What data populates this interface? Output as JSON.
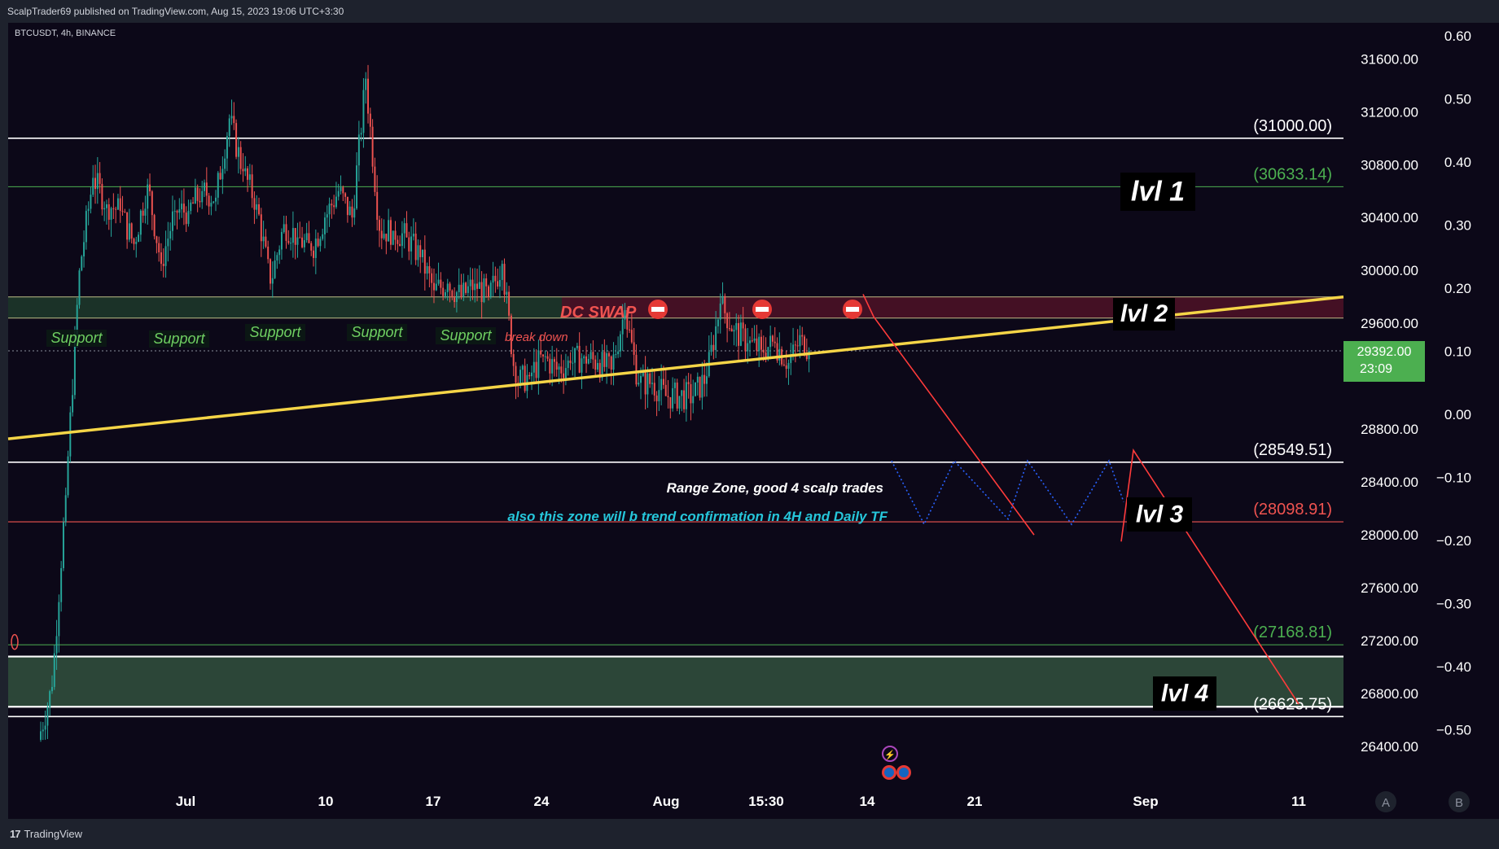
{
  "header": {
    "published_by": "ScalpTrader69 published on TradingView.com, Aug 15, 2023 19:06 UTC+3:30"
  },
  "footer": {
    "brand": "TradingView"
  },
  "chart_data": {
    "type": "candlestick",
    "symbol_label": "BTCUSDT, 4h, BINANCE",
    "colors": {
      "background": "#0c0818",
      "up": "#26a69a",
      "down": "#ef5350",
      "trendline": "#f5d547",
      "level_white": "#ffffff",
      "level_green": "#4caf50",
      "level_red": "#ef5350",
      "projection": "#ff3b3b",
      "range_path": "#2962ff"
    },
    "price_axis": {
      "ticks": [
        "31600.00",
        "31200.00",
        "30800.00",
        "30400.00",
        "30000.00",
        "29600.00",
        "28800.00",
        "28400.00",
        "28000.00",
        "27600.00",
        "27200.00",
        "26800.00",
        "26400.00"
      ],
      "range": [
        26300,
        31850
      ]
    },
    "secondary_axis": {
      "ticks": [
        "0.60",
        "0.50",
        "0.40",
        "0.30",
        "0.20",
        "0.10",
        "0.00",
        "−0.10",
        "−0.20",
        "−0.30",
        "−0.40",
        "−0.50"
      ]
    },
    "time_axis": {
      "ticks": [
        "Jul",
        "10",
        "17",
        "24",
        "Aug",
        "15:30",
        "14",
        "21",
        "Sep",
        "11"
      ]
    },
    "current_price": {
      "value": "29392.00",
      "countdown": "23:09"
    },
    "levels": [
      {
        "price": 31000.0,
        "label": "(31000.00)",
        "color": "white"
      },
      {
        "price": 30633.14,
        "label": "(30633.14)",
        "color": "green"
      },
      {
        "price": 28549.51,
        "label": "(28549.51)",
        "color": "white"
      },
      {
        "price": 28098.91,
        "label": "(28098.91)",
        "color": "red"
      },
      {
        "price": 27168.81,
        "label": "(27168.81)",
        "color": "green"
      },
      {
        "price": 26625.75,
        "label": "(26625.75)",
        "color": "white"
      }
    ],
    "zone_labels": [
      "lvl 1",
      "lvl 2",
      "lvl 3",
      "lvl 4"
    ],
    "support_labels": [
      "Support",
      "Support",
      "Support",
      "Support",
      "Support"
    ],
    "annotations": {
      "break_down": "break down",
      "dc_swap": "DC SWAP",
      "range_zone": "Range Zone, good 4 scalp trades",
      "trend_confirmation": "also this zone will b trend confirmation in 4H and Daily TF"
    },
    "price_series": [
      {
        "date": "Jun 20",
        "close": 26850
      },
      {
        "date": "Jun 21",
        "close": 28300
      },
      {
        "date": "Jun 22",
        "close": 30000
      },
      {
        "date": "Jun 23",
        "close": 30700
      },
      {
        "date": "Jun 24",
        "close": 30500
      },
      {
        "date": "Jun 25",
        "close": 30450
      },
      {
        "date": "Jun 26",
        "close": 30200
      },
      {
        "date": "Jun 27",
        "close": 30650
      },
      {
        "date": "Jun 28",
        "close": 30050
      },
      {
        "date": "Jun 29",
        "close": 30450
      },
      {
        "date": "Jun 30",
        "close": 30450
      },
      {
        "date": "Jul 01",
        "close": 30600
      },
      {
        "date": "Jul 02",
        "close": 30550
      },
      {
        "date": "Jul 03",
        "close": 31150
      },
      {
        "date": "Jul 04",
        "close": 30750
      },
      {
        "date": "Jul 05",
        "close": 30500
      },
      {
        "date": "Jul 06",
        "close": 29900
      },
      {
        "date": "Jul 07",
        "close": 30350
      },
      {
        "date": "Jul 08",
        "close": 30250
      },
      {
        "date": "Jul 09",
        "close": 30150
      },
      {
        "date": "Jul 10",
        "close": 30400
      },
      {
        "date": "Jul 11",
        "close": 30600
      },
      {
        "date": "Jul 12",
        "close": 30400
      },
      {
        "date": "Jul 13",
        "close": 31450
      },
      {
        "date": "Jul 14",
        "close": 30300
      },
      {
        "date": "Jul 15",
        "close": 30300
      },
      {
        "date": "Jul 16",
        "close": 30250
      },
      {
        "date": "Jul 17",
        "close": 30100
      },
      {
        "date": "Jul 18",
        "close": 29850
      },
      {
        "date": "Jul 19",
        "close": 29900
      },
      {
        "date": "Jul 20",
        "close": 29800
      },
      {
        "date": "Jul 21",
        "close": 29900
      },
      {
        "date": "Jul 22",
        "close": 29800
      },
      {
        "date": "Jul 23",
        "close": 30050
      },
      {
        "date": "Jul 24",
        "close": 29150
      },
      {
        "date": "Jul 25",
        "close": 29200
      },
      {
        "date": "Jul 26",
        "close": 29350
      },
      {
        "date": "Jul 27",
        "close": 29250
      },
      {
        "date": "Jul 28",
        "close": 29300
      },
      {
        "date": "Jul 29",
        "close": 29350
      },
      {
        "date": "Jul 30",
        "close": 29300
      },
      {
        "date": "Jul 31",
        "close": 29250
      },
      {
        "date": "Aug 01",
        "close": 29700
      },
      {
        "date": "Aug 02",
        "close": 29150
      },
      {
        "date": "Aug 03",
        "close": 29150
      },
      {
        "date": "Aug 04",
        "close": 29050
      },
      {
        "date": "Aug 05",
        "close": 29050
      },
      {
        "date": "Aug 06",
        "close": 29050
      },
      {
        "date": "Aug 07",
        "close": 29200
      },
      {
        "date": "Aug 08",
        "close": 29750
      },
      {
        "date": "Aug 09",
        "close": 29550
      },
      {
        "date": "Aug 10",
        "close": 29450
      },
      {
        "date": "Aug 11",
        "close": 29400
      },
      {
        "date": "Aug 12",
        "close": 29450
      },
      {
        "date": "Aug 13",
        "close": 29300
      },
      {
        "date": "Aug 14",
        "close": 29500
      },
      {
        "date": "Aug 15",
        "close": 29392
      }
    ]
  }
}
